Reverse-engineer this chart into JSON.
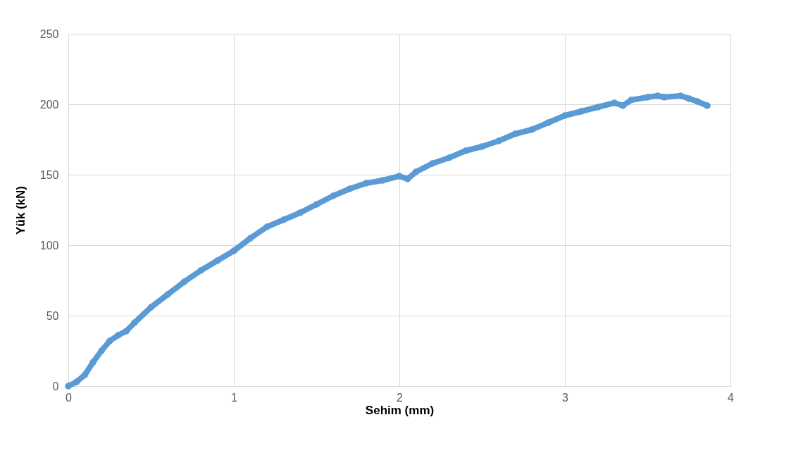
{
  "chart_data": {
    "type": "line",
    "xlabel": "Sehim (mm)",
    "ylabel": "Yük (kN)",
    "color": "#5b9bd5",
    "marker": "circle",
    "grid": true,
    "xlim": [
      0,
      4
    ],
    "xticks": [
      0,
      1,
      2,
      3,
      4
    ],
    "ylim": [
      0,
      250
    ],
    "yticks": [
      0,
      50,
      100,
      150,
      200,
      250
    ],
    "x": [
      0,
      0.05,
      0.1,
      0.15,
      0.2,
      0.25,
      0.3,
      0.35,
      0.4,
      0.5,
      0.6,
      0.7,
      0.8,
      0.9,
      1.0,
      1.1,
      1.2,
      1.3,
      1.4,
      1.5,
      1.6,
      1.7,
      1.8,
      1.9,
      2.0,
      2.05,
      2.1,
      2.2,
      2.3,
      2.4,
      2.5,
      2.6,
      2.7,
      2.8,
      2.9,
      3.0,
      3.1,
      3.2,
      3.3,
      3.35,
      3.4,
      3.5,
      3.56,
      3.6,
      3.7,
      3.75,
      3.8,
      3.86
    ],
    "values": [
      0,
      3,
      8,
      17,
      25,
      32,
      36,
      39,
      45,
      56,
      65,
      74,
      82,
      89,
      96,
      105,
      113,
      118,
      123,
      129,
      135,
      140,
      144,
      146,
      149,
      147,
      152,
      158,
      162,
      167,
      170,
      174,
      179,
      182,
      187,
      192,
      195,
      198,
      201,
      199,
      203,
      205,
      206,
      205,
      206,
      204,
      202,
      199
    ]
  }
}
